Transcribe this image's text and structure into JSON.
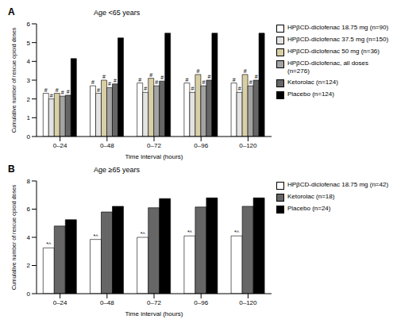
{
  "chart_data": [
    {
      "type": "bar",
      "label": "A",
      "title": "Age <65 years",
      "x_label": "Time interval (hours)",
      "y_label": "Cumulative number of rescue opioid doses",
      "categories": [
        "0–24",
        "0–48",
        "0–72",
        "0–96",
        "0–120"
      ],
      "ylim": [
        0,
        6
      ],
      "yticks": [
        0,
        1,
        2,
        3,
        4,
        5,
        6
      ],
      "grid": false,
      "legend": "right",
      "series": [
        {
          "name": "HPβCD-diclofenac 18.75 mg (n=90)",
          "color": "#ffffff",
          "values": [
            2.3,
            2.7,
            2.85,
            2.85,
            2.85
          ],
          "annotation": "#"
        },
        {
          "name": "HPβCD-diclofenac 37.5 mg (n=150)",
          "color": "#e3e3e3",
          "values": [
            2.0,
            2.3,
            2.35,
            2.35,
            2.35
          ],
          "annotation": "#"
        },
        {
          "name": "HPβCD-diclofenac 50 mg (n=36)",
          "color": "#d8cfa6",
          "values": [
            2.3,
            3.0,
            3.1,
            3.3,
            3.3
          ],
          "annotation": "#"
        },
        {
          "name": "HPβCD-diclofenac, all doses (n=276)",
          "color": "#a3a3a3",
          "values": [
            2.15,
            2.6,
            2.7,
            2.7,
            2.7
          ],
          "annotation": "#"
        },
        {
          "name": "Ketorolac (n=124)",
          "color": "#666666",
          "values": [
            2.2,
            2.8,
            2.95,
            3.0,
            3.0
          ],
          "annotation": "#"
        },
        {
          "name": "Placebo (n=124)",
          "color": "#000000",
          "values": [
            4.15,
            5.25,
            5.5,
            5.5,
            5.5
          ]
        }
      ]
    },
    {
      "type": "bar",
      "label": "B",
      "title": "Age ≥65 years",
      "x_label": "Time interval (hours)",
      "y_label": "Cumulative number of rescue opioid doses",
      "categories": [
        "0–24",
        "0–48",
        "0–72",
        "0–96",
        "0–120"
      ],
      "ylim": [
        0,
        8
      ],
      "yticks": [
        0,
        2,
        4,
        6,
        8
      ],
      "grid": false,
      "legend": "right",
      "series": [
        {
          "name": "HPβCD-diclofenac 18.75 mg (n=42)",
          "color": "#ffffff",
          "values": [
            3.25,
            3.85,
            4.0,
            4.1,
            4.1
          ],
          "annotation": "*^"
        },
        {
          "name": "Ketorolac (n=18)",
          "color": "#666666",
          "values": [
            4.8,
            5.8,
            6.1,
            6.15,
            6.2
          ]
        },
        {
          "name": "Placebo (n=24)",
          "color": "#000000",
          "values": [
            5.25,
            6.2,
            6.75,
            6.8,
            6.8
          ]
        }
      ]
    }
  ]
}
